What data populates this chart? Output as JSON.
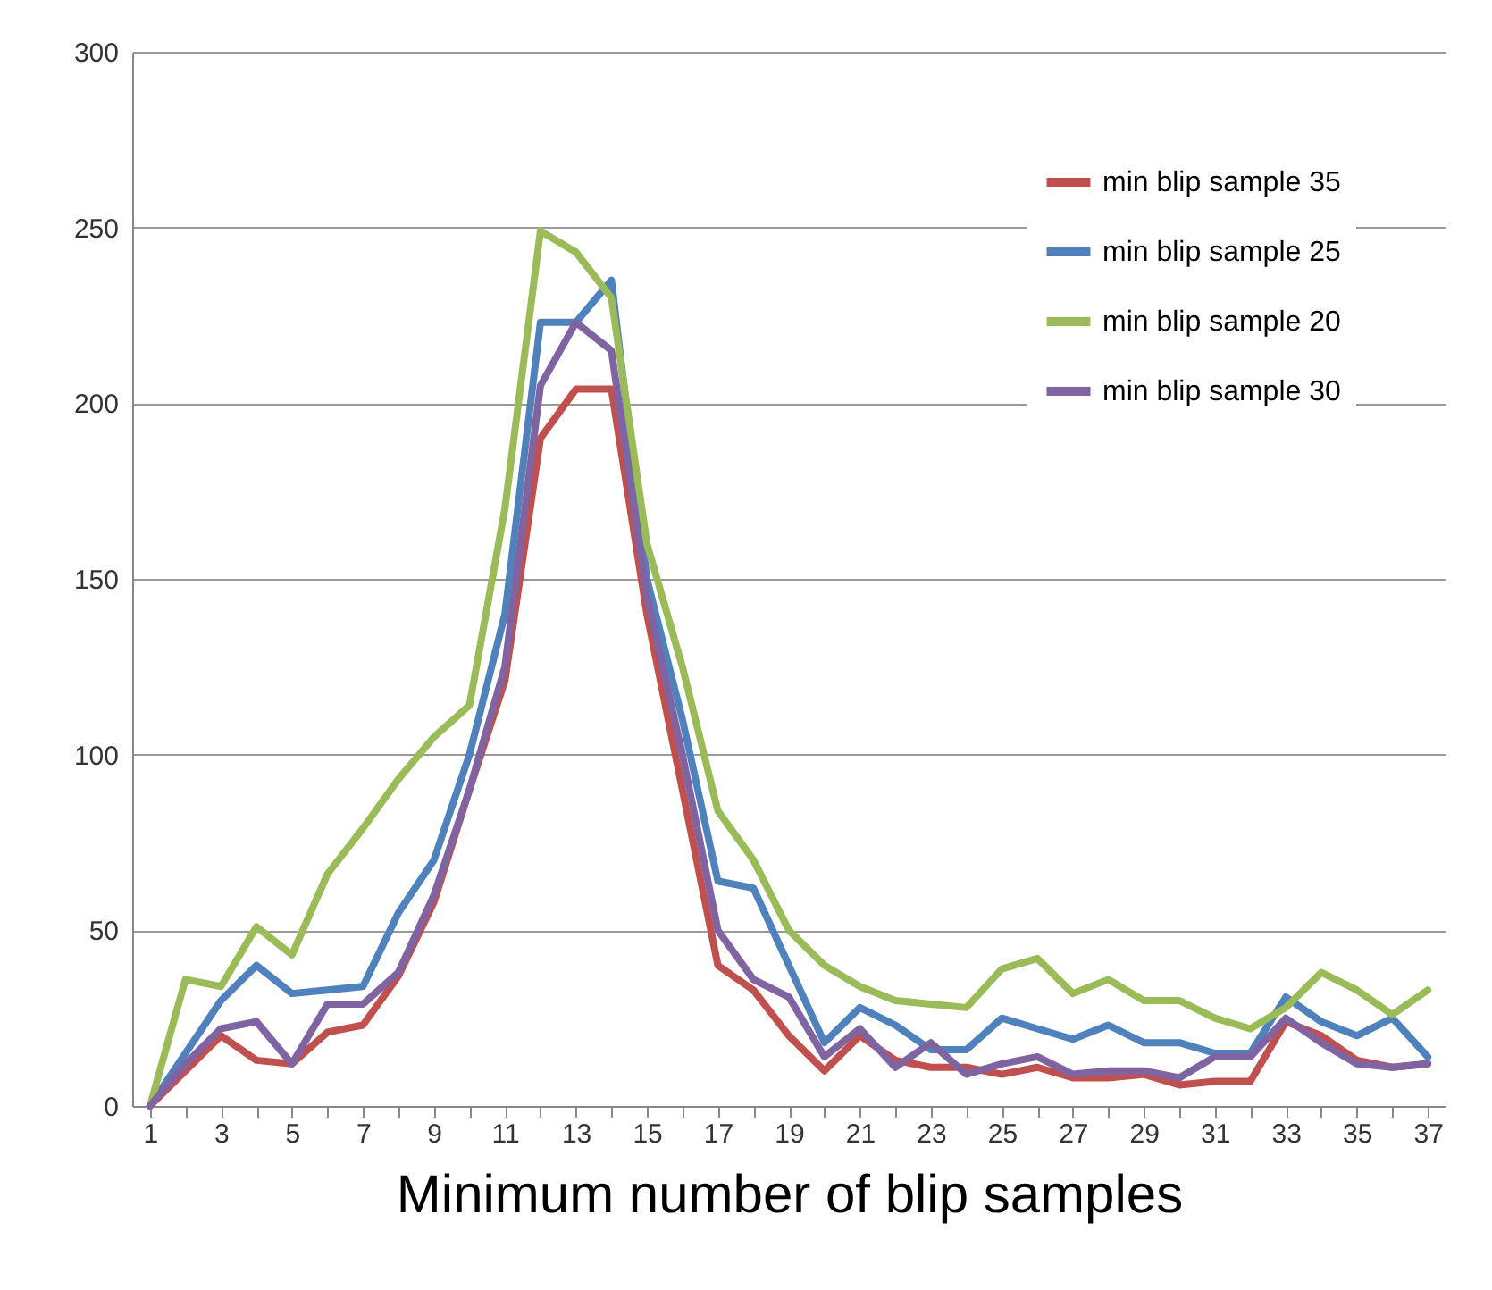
{
  "chart_data": {
    "type": "line",
    "xlabel": "Minimum number of blip samples",
    "x": [
      1,
      2,
      3,
      4,
      5,
      6,
      7,
      8,
      9,
      10,
      11,
      12,
      13,
      14,
      15,
      16,
      17,
      18,
      19,
      20,
      21,
      22,
      23,
      24,
      25,
      26,
      27,
      28,
      29,
      30,
      31,
      32,
      33,
      34,
      35,
      36,
      37
    ],
    "xlim": [
      0.5,
      37.5
    ],
    "xticks": [
      1,
      {
        "value": 2,
        "label": null
      },
      3,
      {
        "value": 4,
        "label": null
      },
      5,
      {
        "value": 6,
        "label": null
      },
      7,
      {
        "value": 8,
        "label": null
      },
      9,
      {
        "value": 10,
        "label": null
      },
      11,
      {
        "value": 12,
        "label": null
      },
      13,
      {
        "value": 14,
        "label": null
      },
      15,
      {
        "value": 16,
        "label": null
      },
      17,
      {
        "value": 18,
        "label": null
      },
      19,
      {
        "value": 20,
        "label": null
      },
      21,
      {
        "value": 22,
        "label": null
      },
      23,
      {
        "value": 24,
        "label": null
      },
      25,
      {
        "value": 26,
        "label": null
      },
      27,
      {
        "value": 28,
        "label": null
      },
      29,
      {
        "value": 30,
        "label": null
      },
      31,
      {
        "value": 32,
        "label": null
      },
      33,
      {
        "value": 34,
        "label": null
      },
      35,
      {
        "value": 36,
        "label": null
      },
      37
    ],
    "series": [
      {
        "name": "min blip sample 35",
        "color": "#c0504d",
        "values": [
          0,
          10,
          20,
          13,
          12,
          21,
          23,
          37,
          58,
          90,
          121,
          190,
          204,
          204,
          140,
          90,
          40,
          33,
          20,
          10,
          20,
          13,
          11,
          11,
          9,
          11,
          8,
          8,
          9,
          6,
          7,
          7,
          24,
          20,
          13,
          11,
          12
        ]
      },
      {
        "name": "min blip sample 25",
        "color": "#4f81bd",
        "values": [
          0,
          15,
          30,
          40,
          32,
          33,
          34,
          55,
          70,
          100,
          140,
          223,
          223,
          235,
          150,
          110,
          64,
          62,
          40,
          18,
          28,
          23,
          16,
          16,
          25,
          22,
          19,
          23,
          18,
          18,
          15,
          15,
          31,
          24,
          20,
          25,
          14
        ]
      },
      {
        "name": "min blip sample 20",
        "color": "#9bbb59",
        "values": [
          0,
          36,
          34,
          51,
          43,
          66,
          79,
          93,
          105,
          114,
          170,
          249,
          243,
          230,
          160,
          125,
          84,
          70,
          50,
          40,
          34,
          30,
          29,
          28,
          39,
          42,
          32,
          36,
          30,
          30,
          25,
          22,
          28,
          38,
          33,
          26,
          33
        ]
      },
      {
        "name": "min blip sample 30",
        "color": "#8064a2",
        "values": [
          0,
          12,
          22,
          24,
          12,
          29,
          29,
          38,
          60,
          90,
          125,
          205,
          223,
          215,
          145,
          100,
          50,
          36,
          31,
          14,
          22,
          11,
          18,
          9,
          12,
          14,
          9,
          10,
          10,
          8,
          14,
          14,
          25,
          18,
          12,
          11,
          12
        ]
      }
    ],
    "ylim": [
      0,
      300
    ],
    "yticks": [
      0,
      50,
      100,
      150,
      200,
      250,
      300
    ],
    "grid": "y",
    "legend": "top right",
    "marker": "none",
    "line_style": "solid"
  }
}
